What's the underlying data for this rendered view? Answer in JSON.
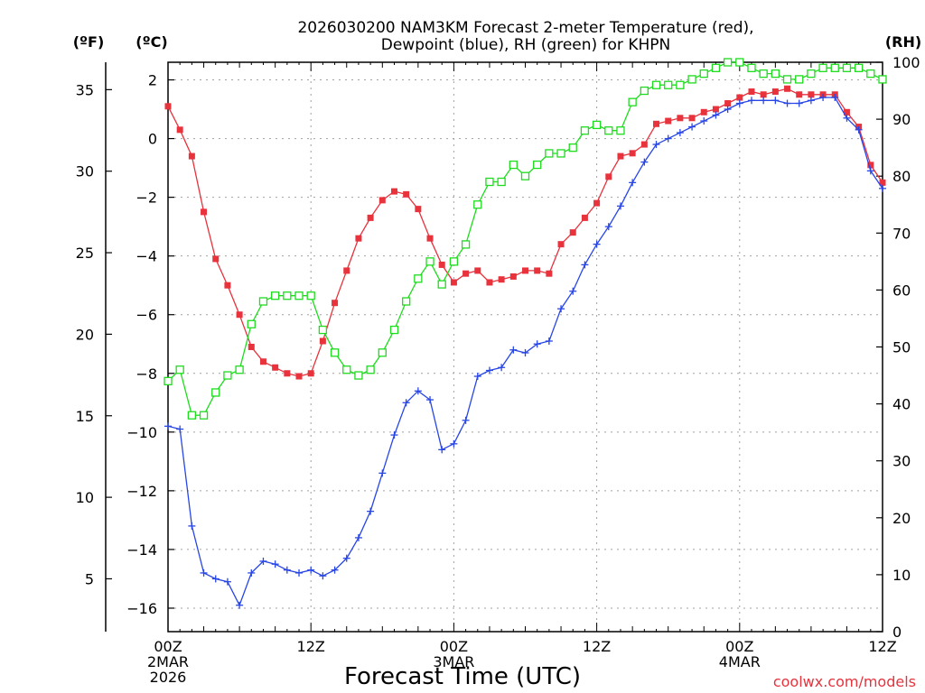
{
  "chart_data": {
    "type": "line",
    "title_lines": [
      "2026030200 NAM3KM Forecast 2-meter Temperature (red),",
      "Dewpoint (blue), RH (green) for KHPN"
    ],
    "xlabel": "Forecast Time (UTC)",
    "credit": "coolwx.com/models",
    "x_hours_range": [
      0,
      60
    ],
    "x_ticks": [
      {
        "hour": 0,
        "lines": [
          "00Z",
          "2MAR",
          "2026"
        ]
      },
      {
        "hour": 12,
        "lines": [
          "12Z"
        ]
      },
      {
        "hour": 24,
        "lines": [
          "00Z",
          "3MAR"
        ]
      },
      {
        "hour": 36,
        "lines": [
          "12Z"
        ]
      },
      {
        "hour": 48,
        "lines": [
          "00Z",
          "4MAR"
        ]
      },
      {
        "hour": 60,
        "lines": [
          "12Z"
        ]
      }
    ],
    "left_axis_c": {
      "label": "(ºC)",
      "range": [
        -16.8,
        2.6
      ],
      "ticks": [
        2,
        0,
        -2,
        -4,
        -6,
        -8,
        -10,
        -12,
        -14,
        -16
      ],
      "tick_labels": [
        "2",
        "0",
        "−2",
        "−4",
        "−6",
        "−8",
        "−10",
        "−12",
        "−14",
        "−16"
      ]
    },
    "left_axis_f": {
      "label": "(ºF)",
      "ticks": [
        35,
        30,
        25,
        20,
        15,
        10,
        5
      ],
      "tick_labels": [
        "35",
        "30",
        "25",
        "20",
        "15",
        "10",
        "5"
      ]
    },
    "right_axis_rh": {
      "label": "(RH)",
      "range": [
        0,
        100
      ],
      "ticks": [
        100,
        90,
        80,
        70,
        60,
        50,
        40,
        30,
        20,
        10,
        0
      ],
      "tick_labels": [
        "100",
        "90",
        "80",
        "70",
        "60",
        "50",
        "40",
        "30",
        "20",
        "10",
        "0"
      ]
    },
    "colors": {
      "temperature": "#e8323c",
      "dewpoint": "#2846e6",
      "rh": "#1edc1e",
      "grid": "#a0a0a0"
    },
    "series": [
      {
        "name": "Temperature",
        "unit": "C",
        "color_key": "temperature",
        "marker": "filled-square",
        "hours": [
          0,
          1,
          2,
          3,
          4,
          5,
          6,
          7,
          8,
          9,
          10,
          11,
          12,
          13,
          14,
          15,
          16,
          17,
          18,
          19,
          20,
          21,
          22,
          23,
          24,
          25,
          26,
          27,
          28,
          29,
          30,
          31,
          32,
          33,
          34,
          35,
          36,
          37,
          38,
          39,
          40,
          41,
          42,
          43,
          44,
          45,
          46,
          47,
          48,
          49,
          50,
          51,
          52,
          53,
          54,
          55,
          56,
          57,
          58,
          59,
          60
        ],
        "values": [
          1.1,
          0.3,
          -0.6,
          -2.5,
          -4.1,
          -5.0,
          -6.0,
          -7.1,
          -7.6,
          -7.8,
          -8.0,
          -8.1,
          -8.0,
          -6.9,
          -5.6,
          -4.5,
          -3.4,
          -2.7,
          -2.1,
          -1.8,
          -1.9,
          -2.4,
          -3.4,
          -4.3,
          -4.9,
          -4.6,
          -4.5,
          -4.9,
          -4.8,
          -4.7,
          -4.5,
          -4.5,
          -4.6,
          -3.6,
          -3.2,
          -2.7,
          -2.2,
          -1.3,
          -0.6,
          -0.5,
          -0.2,
          0.5,
          0.6,
          0.7,
          0.7,
          0.9,
          1.0,
          1.2,
          1.4,
          1.6,
          1.5,
          1.6,
          1.7,
          1.5,
          1.5,
          1.5,
          1.5,
          0.9,
          0.4,
          -0.9,
          -1.5
        ]
      },
      {
        "name": "Dewpoint",
        "unit": "C",
        "color_key": "dewpoint",
        "marker": "plus",
        "hours": [
          0,
          1,
          2,
          3,
          4,
          5,
          6,
          7,
          8,
          9,
          10,
          11,
          12,
          13,
          14,
          15,
          16,
          17,
          18,
          19,
          20,
          21,
          22,
          23,
          24,
          25,
          26,
          27,
          28,
          29,
          30,
          31,
          32,
          33,
          34,
          35,
          36,
          37,
          38,
          39,
          40,
          41,
          42,
          43,
          44,
          45,
          46,
          47,
          48,
          49,
          50,
          51,
          52,
          53,
          54,
          55,
          56,
          57,
          58,
          59,
          60
        ],
        "values": [
          -9.8,
          -9.9,
          -13.2,
          -14.8,
          -15.0,
          -15.1,
          -15.9,
          -14.8,
          -14.4,
          -14.5,
          -14.7,
          -14.8,
          -14.7,
          -14.9,
          -14.7,
          -14.3,
          -13.6,
          -12.7,
          -11.4,
          -10.1,
          -9.0,
          -8.6,
          -8.9,
          -10.6,
          -10.4,
          -9.6,
          -8.1,
          -7.9,
          -7.8,
          -7.2,
          -7.3,
          -7.0,
          -6.9,
          -5.8,
          -5.2,
          -4.3,
          -3.6,
          -3.0,
          -2.3,
          -1.5,
          -0.8,
          -0.2,
          0.0,
          0.2,
          0.4,
          0.6,
          0.8,
          1.0,
          1.2,
          1.3,
          1.3,
          1.3,
          1.2,
          1.2,
          1.3,
          1.4,
          1.4,
          0.7,
          0.3,
          -1.1,
          -1.7
        ]
      },
      {
        "name": "RH",
        "unit": "%",
        "color_key": "rh",
        "marker": "open-square",
        "hours": [
          0,
          1,
          2,
          3,
          4,
          5,
          6,
          7,
          8,
          9,
          10,
          11,
          12,
          13,
          14,
          15,
          16,
          17,
          18,
          19,
          20,
          21,
          22,
          23,
          24,
          25,
          26,
          27,
          28,
          29,
          30,
          31,
          32,
          33,
          34,
          35,
          36,
          37,
          38,
          39,
          40,
          41,
          42,
          43,
          44,
          45,
          46,
          47,
          48,
          49,
          50,
          51,
          52,
          53,
          54,
          55,
          56,
          57,
          58,
          59,
          60
        ],
        "values": [
          44,
          46,
          38,
          38,
          42,
          45,
          46,
          54,
          58,
          59,
          59,
          59,
          59,
          53,
          49,
          46,
          45,
          46,
          49,
          53,
          58,
          62,
          65,
          61,
          65,
          68,
          75,
          79,
          79,
          82,
          80,
          82,
          84,
          84,
          85,
          88,
          89,
          88,
          88,
          93,
          95,
          96,
          96,
          96,
          97,
          98,
          99,
          100,
          100,
          99,
          98,
          98,
          97,
          97,
          98,
          99,
          99,
          99,
          99,
          98,
          97
        ]
      }
    ]
  }
}
